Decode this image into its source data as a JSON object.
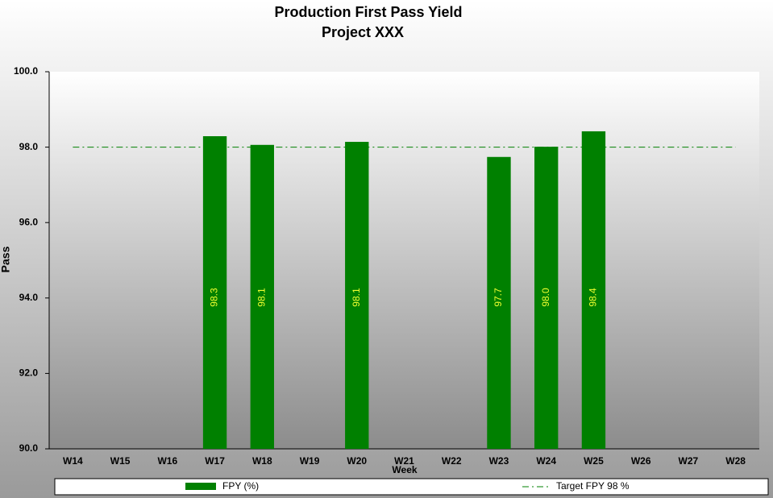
{
  "chart_data": {
    "type": "bar",
    "title": "Production  First Pass Yield",
    "subtitle": "Project XXX",
    "x_label": "Week",
    "y_label": "Pass",
    "categories": [
      "W14",
      "W15",
      "W16",
      "W17",
      "W18",
      "W19",
      "W20",
      "W21",
      "W22",
      "W23",
      "W24",
      "W25",
      "W26",
      "W27",
      "W28"
    ],
    "series": [
      {
        "name": "FPY (%)",
        "color": "#008000",
        "values": [
          null,
          null,
          null,
          98.29,
          98.06,
          null,
          98.14,
          null,
          null,
          97.74,
          98.01,
          98.42,
          null,
          null,
          null
        ],
        "value_labels": [
          null,
          null,
          null,
          "98.3",
          "98.1",
          null,
          "98.1",
          null,
          null,
          "97.7",
          "98.0",
          "98.4",
          null,
          null,
          null
        ]
      }
    ],
    "target": {
      "name": "Target  FPY 98 %",
      "value": 98,
      "color": "#008000"
    },
    "ylim": [
      90,
      100
    ],
    "yticks": [
      {
        "value": 90,
        "label": "90.0"
      },
      {
        "value": 92,
        "label": "92.0"
      },
      {
        "value": 94,
        "label": "94.0"
      },
      {
        "value": 96,
        "label": "96.0"
      },
      {
        "value": 98,
        "label": "98.0"
      },
      {
        "value": 100,
        "label": "100.0"
      }
    ],
    "value_label_color": "#f0ff30"
  }
}
